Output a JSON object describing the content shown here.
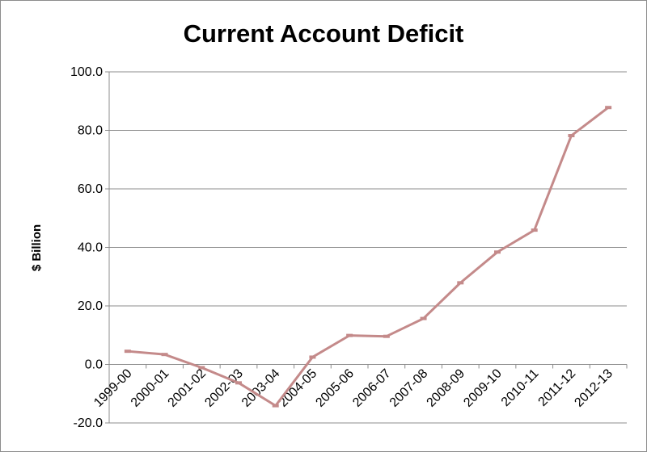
{
  "chart_data": {
    "type": "line",
    "title": "Current Account Deficit",
    "xlabel": "",
    "ylabel": "$ Billion",
    "categories": [
      "1999-00",
      "2000-01",
      "2001-02",
      "2002-03",
      "2003-04",
      "2004-05",
      "2005-06",
      "2006-07",
      "2007-08",
      "2008-09",
      "2009-10",
      "2010-11",
      "2011-12",
      "2012-13"
    ],
    "series": [
      {
        "values": [
          4.5,
          3.4,
          -1.1,
          -6.3,
          -14.1,
          2.5,
          9.9,
          9.6,
          15.7,
          27.9,
          38.4,
          45.9,
          78.2,
          87.8
        ],
        "color": "#c48a8a"
      }
    ],
    "ylim": [
      -20,
      100
    ],
    "yticks": [
      -20,
      0,
      20,
      40,
      60,
      80,
      100
    ],
    "ytick_labels": [
      "-20.0",
      "0.0",
      "20.0",
      "40.0",
      "60.0",
      "80.0",
      "100.0"
    ],
    "grid": true,
    "legend": "none"
  }
}
